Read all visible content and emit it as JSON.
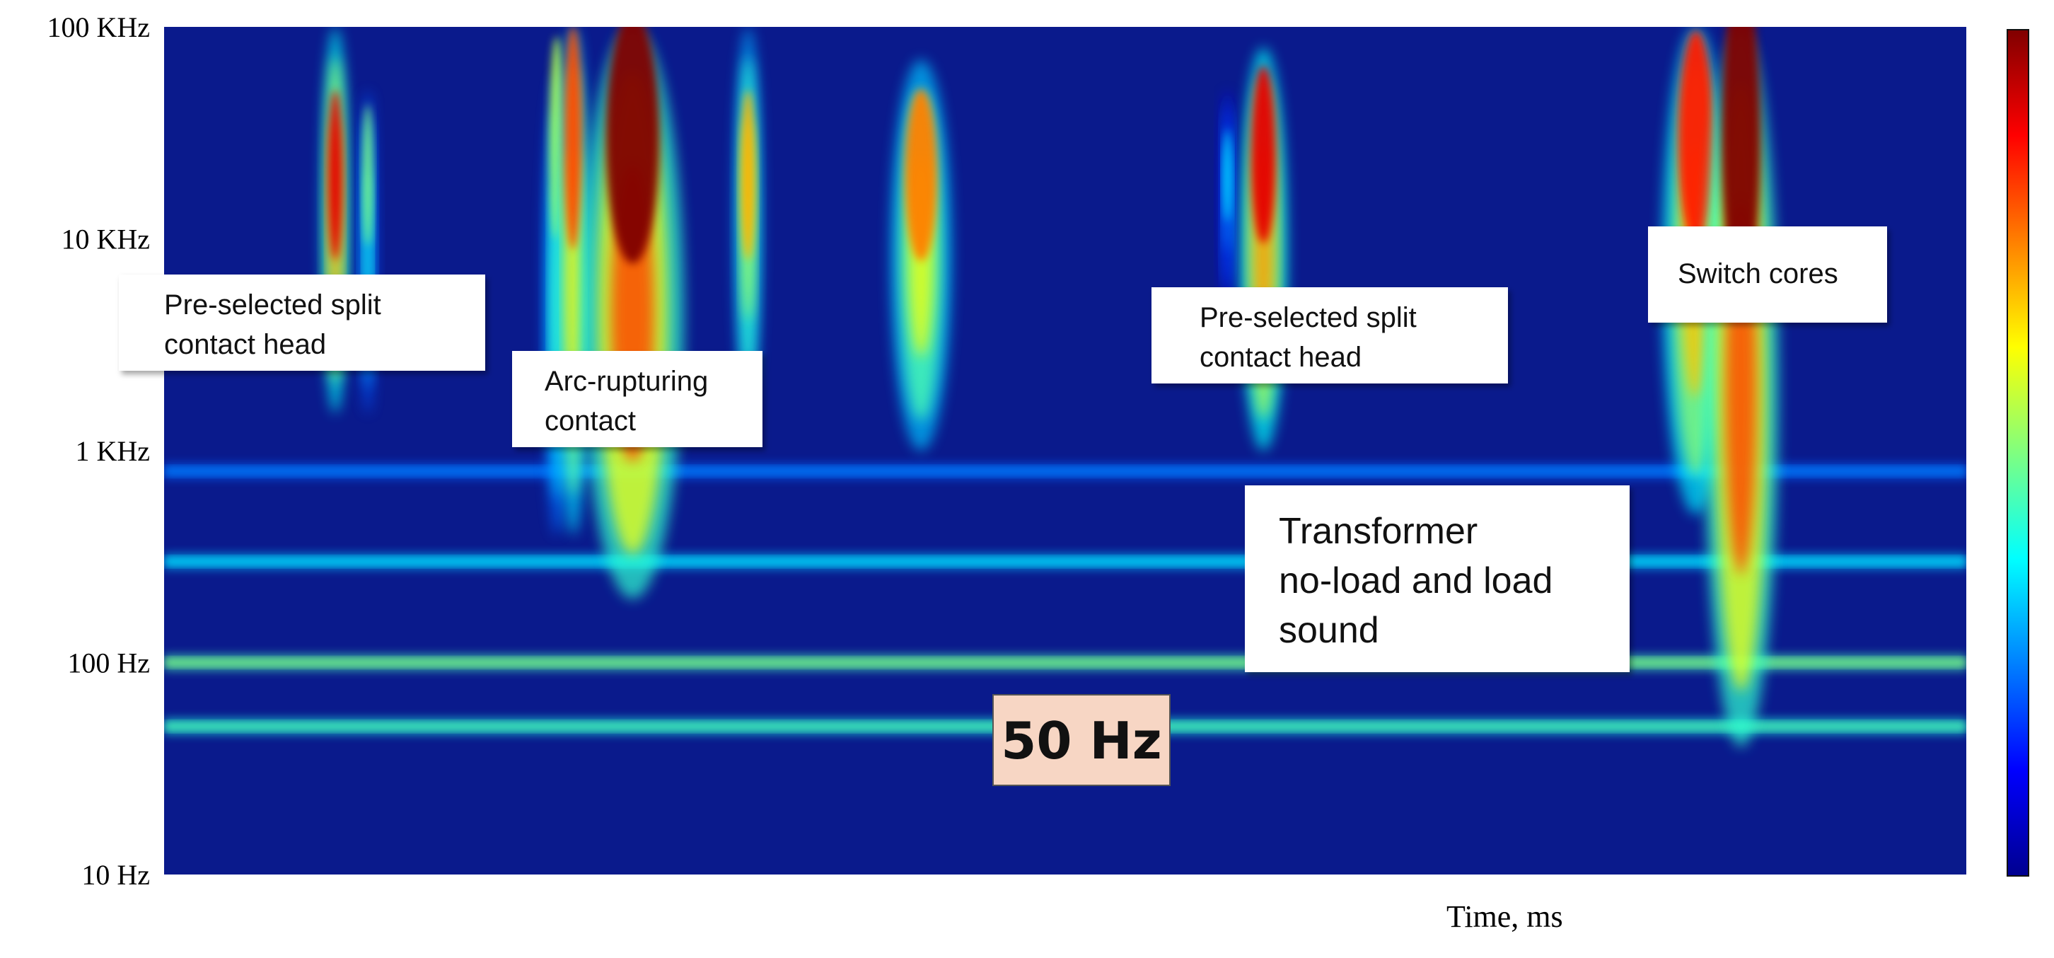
{
  "chart_data": {
    "type": "heatmap",
    "title": "",
    "xlabel": "Time, ms",
    "ylabel": "",
    "yscale": "log",
    "ylim_hz": [
      10,
      100000
    ],
    "yticks": [
      {
        "value": 100000,
        "label": "100 KHz"
      },
      {
        "value": 10000,
        "label": "10 KHz"
      },
      {
        "value": 1000,
        "label": "1 KHz"
      },
      {
        "value": 100,
        "label": "100 Hz"
      },
      {
        "value": 10,
        "label": "10 Hz"
      }
    ],
    "colorbar": {
      "colormap": "jet",
      "ticks_shown": false
    },
    "background_color": "#0a1a8c",
    "horizontal_bands": [
      {
        "freq_hz": 50,
        "intensity": 0.45
      },
      {
        "freq_hz": 100,
        "intensity": 0.5
      },
      {
        "freq_hz": 300,
        "intensity": 0.35
      },
      {
        "freq_hz": 800,
        "intensity": 0.25
      }
    ],
    "events": [
      {
        "time_frac": 0.095,
        "f_low_hz": 1500,
        "f_high_hz": 100000,
        "peak_hz": 20000,
        "intensity": 0.9,
        "width_frac": 0.008
      },
      {
        "time_frac": 0.113,
        "f_low_hz": 1500,
        "f_high_hz": 50000,
        "peak_hz": 20000,
        "intensity": 0.5,
        "width_frac": 0.005
      },
      {
        "time_frac": 0.218,
        "f_low_hz": 400,
        "f_high_hz": 60000,
        "peak_hz": 30000,
        "intensity": 0.55,
        "width_frac": 0.008
      },
      {
        "time_frac": 0.227,
        "f_low_hz": 400,
        "f_high_hz": 100000,
        "peak_hz": 30000,
        "intensity": 0.8,
        "width_frac": 0.01
      },
      {
        "time_frac": 0.26,
        "f_low_hz": 200,
        "f_high_hz": 100000,
        "peak_hz": 30000,
        "intensity": 1.0,
        "width_frac": 0.03
      },
      {
        "time_frac": 0.324,
        "f_low_hz": 1500,
        "f_high_hz": 100000,
        "peak_hz": 20000,
        "intensity": 0.7,
        "width_frac": 0.008
      },
      {
        "time_frac": 0.42,
        "f_low_hz": 1000,
        "f_high_hz": 70000,
        "peak_hz": 20000,
        "intensity": 0.75,
        "width_frac": 0.018
      },
      {
        "time_frac": 0.59,
        "f_low_hz": 5000,
        "f_high_hz": 50000,
        "peak_hz": 20000,
        "intensity": 0.35,
        "width_frac": 0.004
      },
      {
        "time_frac": 0.608,
        "f_low_hz": 5000,
        "f_high_hz": 50000,
        "peak_hz": 20000,
        "intensity": 0.35,
        "width_frac": 0.004
      },
      {
        "time_frac": 0.61,
        "f_low_hz": 1000,
        "f_high_hz": 80000,
        "peak_hz": 25000,
        "intensity": 0.9,
        "width_frac": 0.014
      },
      {
        "time_frac": 0.85,
        "f_low_hz": 500,
        "f_high_hz": 100000,
        "peak_hz": 30000,
        "intensity": 0.85,
        "width_frac": 0.02
      },
      {
        "time_frac": 0.875,
        "f_low_hz": 40,
        "f_high_hz": 100000,
        "peak_hz": 30000,
        "intensity": 1.0,
        "width_frac": 0.022
      }
    ],
    "annotations": [
      {
        "text": [
          "Pre-selected split",
          "contact head"
        ]
      },
      {
        "text": [
          "Arc-rupturing",
          "contact"
        ]
      },
      {
        "text": [
          "Pre-selected split",
          "contact head"
        ]
      },
      {
        "text": [
          "Switch cores"
        ]
      },
      {
        "text": [
          "Transformer",
          "no-load and load",
          "sound"
        ]
      }
    ],
    "band_label": "50 Hz"
  }
}
